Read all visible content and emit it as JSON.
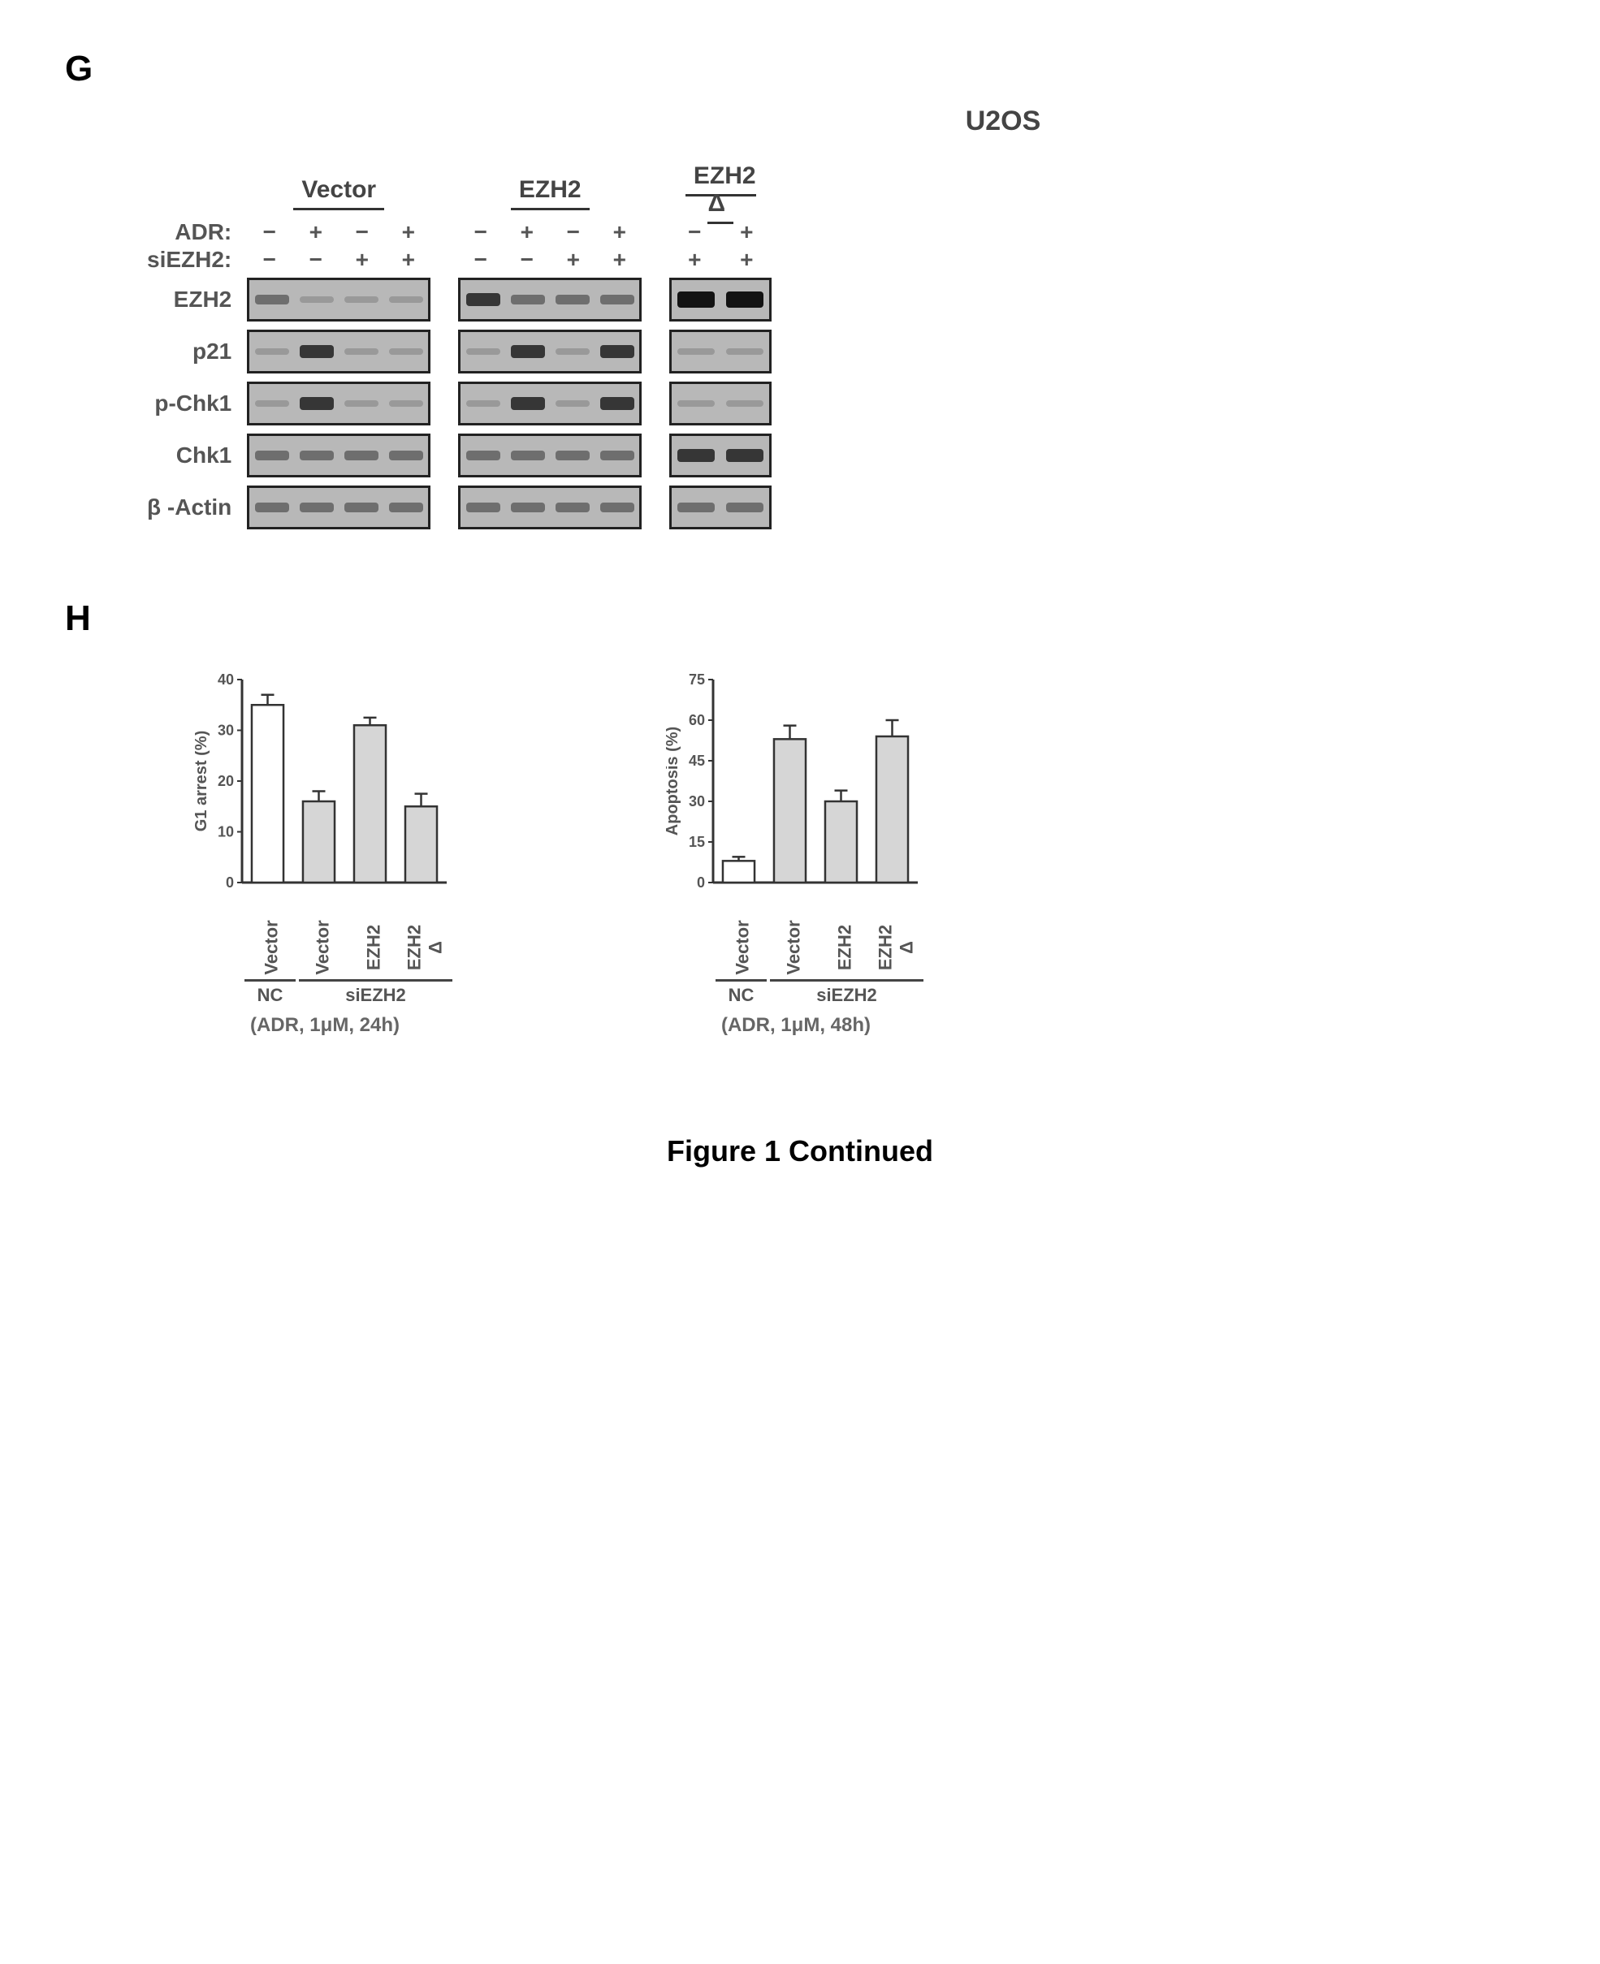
{
  "panelG": {
    "label": "G",
    "title": "U2OS",
    "column_groups": [
      "Vector",
      "EZH2",
      "EZH2 Δ"
    ],
    "group_lanes": [
      4,
      4,
      2
    ],
    "treatment_rows": [
      {
        "label": "ADR:",
        "symbols": [
          "−",
          "+",
          "−",
          "+",
          "−",
          "+",
          "−",
          "+",
          "−",
          "+"
        ]
      },
      {
        "label": "siEZH2:",
        "symbols": [
          "−",
          "−",
          "+",
          "+",
          "−",
          "−",
          "+",
          "+",
          "+",
          "+"
        ]
      }
    ],
    "protein_rows": [
      {
        "label": "EZH2",
        "blocks": [
          {
            "lanes": 4,
            "bands": [
              {
                "pos": 0,
                "intensity": "med"
              },
              {
                "pos": 1,
                "intensity": "faint"
              },
              {
                "pos": 2,
                "intensity": "faint"
              },
              {
                "pos": 3,
                "intensity": "faint"
              }
            ]
          },
          {
            "lanes": 4,
            "bands": [
              {
                "pos": 0,
                "intensity": "strong"
              },
              {
                "pos": 1,
                "intensity": "med"
              },
              {
                "pos": 2,
                "intensity": "med"
              },
              {
                "pos": 3,
                "intensity": "med"
              }
            ]
          },
          {
            "lanes": 2,
            "bands": [
              {
                "pos": 0,
                "intensity": "vstrong"
              },
              {
                "pos": 1,
                "intensity": "vstrong"
              }
            ]
          }
        ]
      },
      {
        "label": "p21",
        "blocks": [
          {
            "lanes": 4,
            "bands": [
              {
                "pos": 0,
                "intensity": "faint"
              },
              {
                "pos": 1,
                "intensity": "strong"
              },
              {
                "pos": 2,
                "intensity": "faint"
              },
              {
                "pos": 3,
                "intensity": "faint"
              }
            ]
          },
          {
            "lanes": 4,
            "bands": [
              {
                "pos": 0,
                "intensity": "faint"
              },
              {
                "pos": 1,
                "intensity": "strong"
              },
              {
                "pos": 2,
                "intensity": "faint"
              },
              {
                "pos": 3,
                "intensity": "strong"
              }
            ]
          },
          {
            "lanes": 2,
            "bands": [
              {
                "pos": 0,
                "intensity": "faint"
              },
              {
                "pos": 1,
                "intensity": "faint"
              }
            ]
          }
        ]
      },
      {
        "label": "p-Chk1",
        "blocks": [
          {
            "lanes": 4,
            "bands": [
              {
                "pos": 0,
                "intensity": "faint"
              },
              {
                "pos": 1,
                "intensity": "strong"
              },
              {
                "pos": 2,
                "intensity": "faint"
              },
              {
                "pos": 3,
                "intensity": "faint"
              }
            ]
          },
          {
            "lanes": 4,
            "bands": [
              {
                "pos": 0,
                "intensity": "faint"
              },
              {
                "pos": 1,
                "intensity": "strong"
              },
              {
                "pos": 2,
                "intensity": "faint"
              },
              {
                "pos": 3,
                "intensity": "strong"
              }
            ]
          },
          {
            "lanes": 2,
            "bands": [
              {
                "pos": 0,
                "intensity": "faint"
              },
              {
                "pos": 1,
                "intensity": "faint"
              }
            ]
          }
        ]
      },
      {
        "label": "Chk1",
        "blocks": [
          {
            "lanes": 4,
            "bands": [
              {
                "pos": 0,
                "intensity": "med"
              },
              {
                "pos": 1,
                "intensity": "med"
              },
              {
                "pos": 2,
                "intensity": "med"
              },
              {
                "pos": 3,
                "intensity": "med"
              }
            ]
          },
          {
            "lanes": 4,
            "bands": [
              {
                "pos": 0,
                "intensity": "med"
              },
              {
                "pos": 1,
                "intensity": "med"
              },
              {
                "pos": 2,
                "intensity": "med"
              },
              {
                "pos": 3,
                "intensity": "med"
              }
            ]
          },
          {
            "lanes": 2,
            "bands": [
              {
                "pos": 0,
                "intensity": "strong"
              },
              {
                "pos": 1,
                "intensity": "strong"
              }
            ]
          }
        ]
      },
      {
        "label": "β -Actin",
        "blocks": [
          {
            "lanes": 4,
            "bands": [
              {
                "pos": 0,
                "intensity": "med"
              },
              {
                "pos": 1,
                "intensity": "med"
              },
              {
                "pos": 2,
                "intensity": "med"
              },
              {
                "pos": 3,
                "intensity": "med"
              }
            ]
          },
          {
            "lanes": 4,
            "bands": [
              {
                "pos": 0,
                "intensity": "med"
              },
              {
                "pos": 1,
                "intensity": "med"
              },
              {
                "pos": 2,
                "intensity": "med"
              },
              {
                "pos": 3,
                "intensity": "med"
              }
            ]
          },
          {
            "lanes": 2,
            "bands": [
              {
                "pos": 0,
                "intensity": "med"
              },
              {
                "pos": 1,
                "intensity": "med"
              }
            ]
          }
        ]
      }
    ]
  },
  "panelH": {
    "label": "H",
    "charts": [
      {
        "type": "bar",
        "ylabel": "G1 arrest (%)",
        "ylim": [
          0,
          40
        ],
        "yticks": [
          0,
          10,
          20,
          30,
          40
        ],
        "categories": [
          "Vector",
          "Vector",
          "EZH2",
          "EZH2 Δ"
        ],
        "groups": [
          {
            "label": "NC",
            "span": 1
          },
          {
            "label": "siEZH2",
            "span": 3
          }
        ],
        "values": [
          35,
          16,
          31,
          15
        ],
        "errors": [
          2,
          2,
          1.5,
          2.5
        ],
        "bar_colors": [
          "#ffffff",
          "#d6d6d6",
          "#d6d6d6",
          "#d6d6d6"
        ],
        "bar_border": "#333333",
        "axis_color": "#333333",
        "tick_fontsize": 18,
        "label_fontsize": 20,
        "subcaption": "(ADR, 1μM, 24h)"
      },
      {
        "type": "bar",
        "ylabel": "Apoptosis (%)",
        "ylim": [
          0,
          75
        ],
        "yticks": [
          0,
          15,
          30,
          45,
          60,
          75
        ],
        "categories": [
          "Vector",
          "Vector",
          "EZH2",
          "EZH2 Δ"
        ],
        "groups": [
          {
            "label": "NC",
            "span": 1
          },
          {
            "label": "siEZH2",
            "span": 3
          }
        ],
        "values": [
          8,
          53,
          30,
          54
        ],
        "errors": [
          1.5,
          5,
          4,
          6
        ],
        "bar_colors": [
          "#ffffff",
          "#d6d6d6",
          "#d6d6d6",
          "#d6d6d6"
        ],
        "bar_border": "#333333",
        "axis_color": "#333333",
        "tick_fontsize": 18,
        "label_fontsize": 20,
        "subcaption": "(ADR, 1μM, 48h)"
      }
    ]
  },
  "caption": "Figure 1 Continued"
}
